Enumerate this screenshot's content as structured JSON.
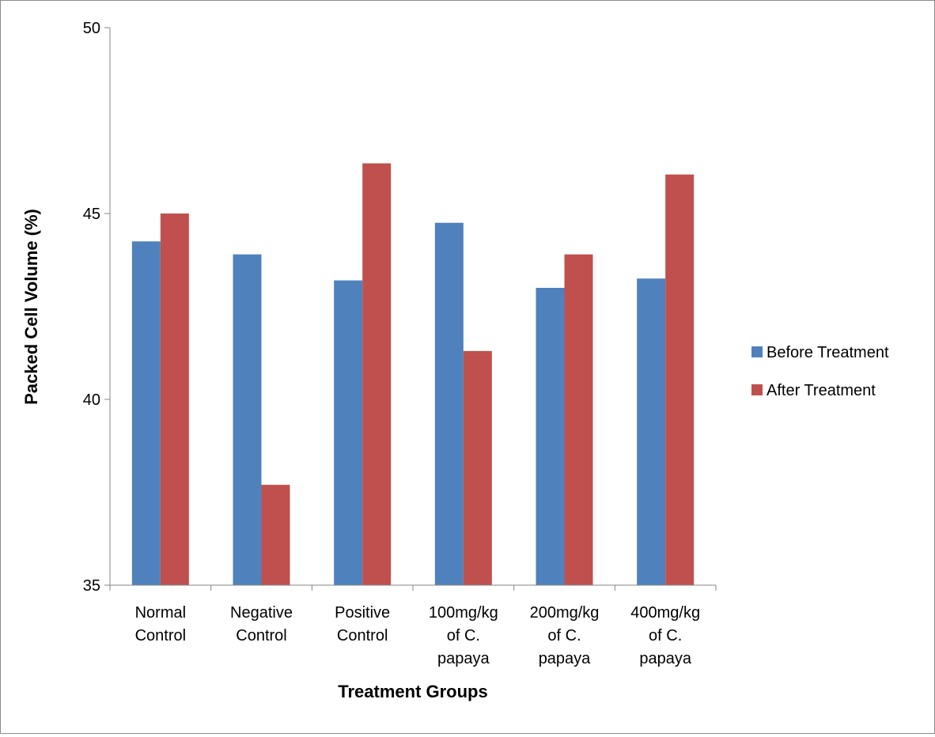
{
  "chart_data": {
    "type": "bar",
    "title": "",
    "xlabel": "Treatment Groups",
    "ylabel": "Packed Cell Volume (%)",
    "ylim": [
      35,
      50
    ],
    "yticks": [
      35,
      40,
      45,
      50
    ],
    "grid": false,
    "legend_position": "right",
    "categories": [
      [
        "Normal",
        "Control"
      ],
      [
        "Negative",
        "Control"
      ],
      [
        "Positive",
        "Control"
      ],
      [
        "100mg/kg",
        "of C.",
        "papaya"
      ],
      [
        "200mg/kg",
        "of C.",
        "papaya"
      ],
      [
        "400mg/kg",
        "of C.",
        "papaya"
      ]
    ],
    "series": [
      {
        "name": "Before Treatment",
        "color": "#4f81bd",
        "values": [
          44.25,
          43.9,
          43.2,
          44.75,
          43.0,
          43.25
        ]
      },
      {
        "name": "After Treatment",
        "color": "#c0504d",
        "values": [
          45.0,
          37.7,
          46.35,
          41.3,
          43.9,
          46.05
        ]
      }
    ]
  }
}
